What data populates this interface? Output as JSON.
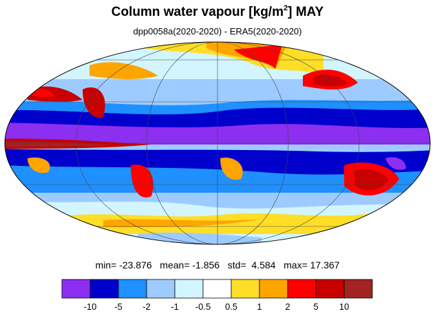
{
  "title": {
    "prefix": "Column water vapour [kg/m",
    "sup": "2",
    "suffix": "] MAY"
  },
  "subtitle": "dpp0058a(2020-2020) - ERA5(2020-2020)",
  "stats": {
    "min": "-23.876",
    "mean": "-1.856",
    "std": "4.584",
    "max": "17.367"
  },
  "stats_labels": {
    "min": "min=",
    "mean": "mean=",
    "std": "std=",
    "max": "max="
  },
  "colorbar": {
    "colors": [
      "#8c2ff0",
      "#0000cd",
      "#1e90ff",
      "#9ecbff",
      "#d2f5ff",
      "#ffffff",
      "#ffde27",
      "#ffa500",
      "#ff0000",
      "#c80000",
      "#a32222"
    ],
    "levels": [
      "-10",
      "-5",
      "-2",
      "-1",
      "-0.5",
      "0.5",
      "1",
      "2",
      "5",
      "10"
    ]
  }
}
